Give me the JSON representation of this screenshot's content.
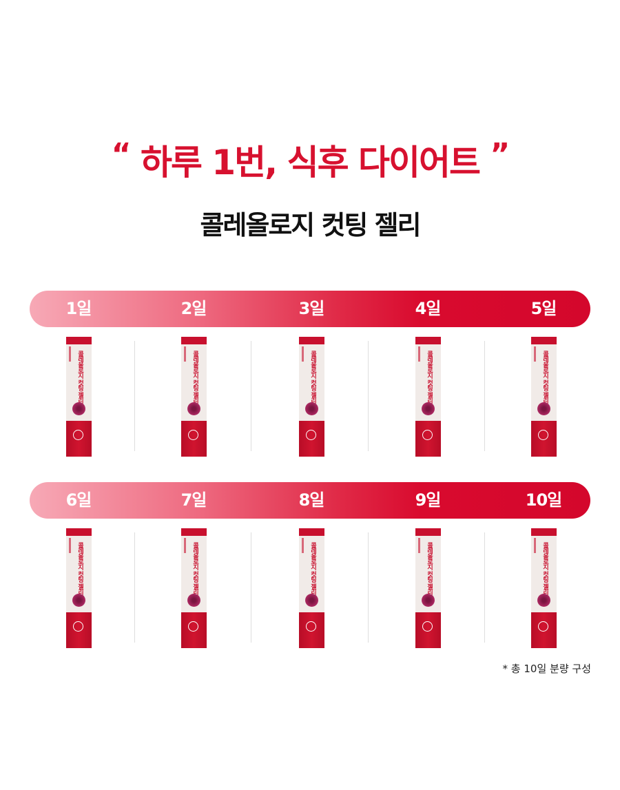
{
  "headline": {
    "open_quote": "“",
    "text": "하루 1번, 식후 다이어트",
    "close_quote": "”"
  },
  "subtitle": "콜레올로지 컷팅 젤리",
  "product_label": "콜레올로지 컷팅 젤리",
  "rows": [
    {
      "days": [
        "1일",
        "2일",
        "3일",
        "4일",
        "5일"
      ]
    },
    {
      "days": [
        "6일",
        "7일",
        "8일",
        "9일",
        "10일"
      ]
    }
  ],
  "footnote": "* 총 10일 분량 구성",
  "colors": {
    "accent": "#d7112f",
    "bar_start": "#f7a9b6",
    "bar_end": "#d4072c"
  }
}
